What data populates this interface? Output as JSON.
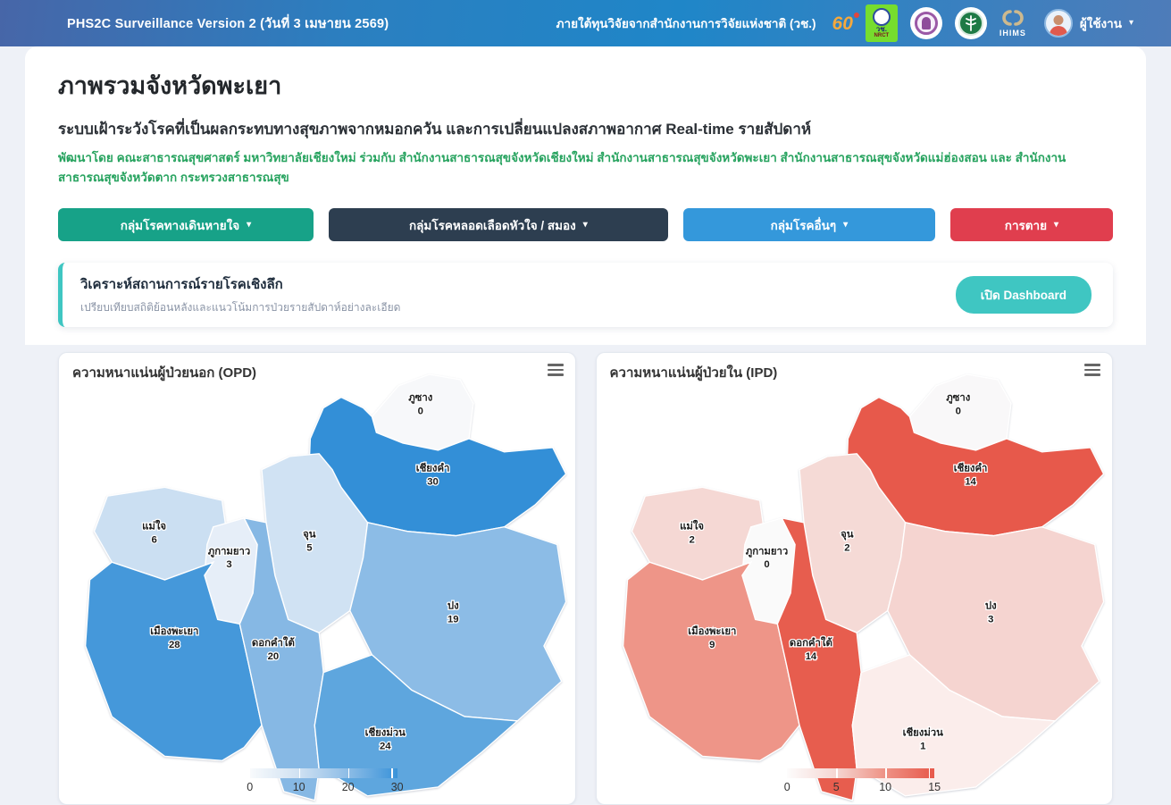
{
  "header": {
    "app_title": "PHS2C Surveillance Version 2 (วันที่ 3 เมษายน 2569)",
    "funding_text": "ภายใต้ทุนวิจัยจากสำนักงานการวิจัยแห่งชาติ (วช.)",
    "logo_60_text": "60",
    "nrct_line1": "วช.",
    "nrct_line2": "NRCT",
    "ihims_label": "IHIMS",
    "user_label": "ผู้ใช้งาน"
  },
  "intro": {
    "title": "ภาพรวมจังหวัดพะเยา",
    "subtitle": "ระบบเฝ้าระวังโรคที่เป็นผลกระทบทางสุขภาพจากหมอกควัน และการเปลี่ยนแปลงสภาพอากาศ Real-time รายสัปดาห์",
    "credit": "พัฒนาโดย คณะสาธารณสุขศาสตร์ มหาวิทยาลัยเชียงใหม่ ร่วมกับ สำนักงานสาธารณสุขจังหวัดเชียงใหม่ สำนักงานสาธารณสุขจังหวัดพะเยา สำนักงานสาธารณสุขจังหวัดแม่ฮ่องสอน และ สำนักงานสาธารณสุขจังหวัดตาก กระทรวงสาธารณสุข"
  },
  "disease_buttons": [
    {
      "label": "กลุ่มโรคทางเดินหายใจ",
      "color": "#17a288"
    },
    {
      "label": "กลุ่มโรคหลอดเลือดหัวใจ / สมอง",
      "color": "#2d3e50"
    },
    {
      "label": "กลุ่มโรคอื่นๆ",
      "color": "#3498db"
    },
    {
      "label": "การตาย",
      "color": "#e03e4e"
    }
  ],
  "analysis_card": {
    "title": "วิเคราะห์สถานการณ์รายโรคเชิงลึก",
    "subtitle": "เปรียบเทียบสถิติย้อนหลังและแนวโน้มการป่วยรายสัปดาห์อย่างละเอียด",
    "button_label": "เปิด Dashboard",
    "accent_color": "#3fc6c2"
  },
  "maps": [
    {
      "title": "ความหนาแน่นผู้ป่วยนอก (OPD)",
      "type": "choropleth",
      "legend_ticks": [
        "0",
        "10",
        "20",
        "30"
      ],
      "legend_gradient": [
        "#f8fafc",
        "#cfe1f2",
        "#8cbce6",
        "#3a93d9"
      ],
      "districts": [
        {
          "name": "ภูซาง",
          "value": "0",
          "color": "#f7f8fa"
        },
        {
          "name": "เชียงคำ",
          "value": "30",
          "color": "#338fd7"
        },
        {
          "name": "แม่ใจ",
          "value": "6",
          "color": "#cbdff2"
        },
        {
          "name": "ภูกามยาว",
          "value": "3",
          "color": "#e6eef8"
        },
        {
          "name": "จุน",
          "value": "5",
          "color": "#d0e2f3"
        },
        {
          "name": "ปง",
          "value": "19",
          "color": "#8cbce6"
        },
        {
          "name": "เมืองพะเยา",
          "value": "28",
          "color": "#4598da"
        },
        {
          "name": "ดอกคำใต้",
          "value": "20",
          "color": "#86b8e4"
        },
        {
          "name": "เชียงม่วน",
          "value": "24",
          "color": "#5ea6de"
        }
      ]
    },
    {
      "title": "ความหนาแน่นผู้ป่วยใน (IPD)",
      "type": "choropleth",
      "legend_ticks": [
        "0",
        "5",
        "10",
        "15"
      ],
      "legend_gradient": [
        "#fdfcfc",
        "#f5d6d2",
        "#ee9285",
        "#e7594b"
      ],
      "districts": [
        {
          "name": "ภูซาง",
          "value": "0",
          "color": "#f9f8f9"
        },
        {
          "name": "เชียงคำ",
          "value": "14",
          "color": "#e7594b"
        },
        {
          "name": "แม่ใจ",
          "value": "2",
          "color": "#f5d8d4"
        },
        {
          "name": "ภูกามยาว",
          "value": "0",
          "color": "#fafafa"
        },
        {
          "name": "จุน",
          "value": "2",
          "color": "#f5dad6"
        },
        {
          "name": "ปง",
          "value": "3",
          "color": "#f5d4d0"
        },
        {
          "name": "เมืองพะเยา",
          "value": "9",
          "color": "#ee9588"
        },
        {
          "name": "ดอกคำใต้",
          "value": "14",
          "color": "#e75d4e"
        },
        {
          "name": "เชียงม่วน",
          "value": "1",
          "color": "#fbedeb"
        }
      ]
    }
  ]
}
